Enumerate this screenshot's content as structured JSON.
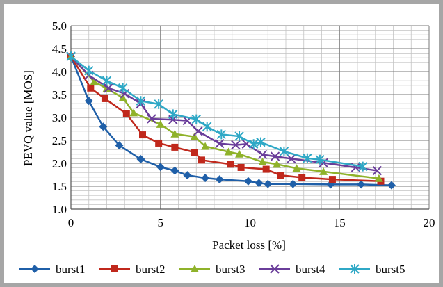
{
  "chart_data": {
    "type": "line",
    "xlabel": "Packet loss [%]",
    "ylabel": "PEVQ value [MOS]",
    "xlim": [
      0,
      20
    ],
    "ylim": [
      1.0,
      5.0
    ],
    "x_ticks": [
      "0",
      "5",
      "10",
      "15",
      "20"
    ],
    "y_ticks": [
      "1.0",
      "1.5",
      "2.0",
      "2.5",
      "3.0",
      "3.5",
      "4.0",
      "4.5",
      "5.0"
    ],
    "grid": true,
    "legend_position": "bottom",
    "series": [
      {
        "name": "burst1",
        "color": "#1f5fa8",
        "marker": "diamond",
        "points": [
          [
            0,
            4.33
          ],
          [
            1,
            3.36
          ],
          [
            1.8,
            2.8
          ],
          [
            2.7,
            2.39
          ],
          [
            3.9,
            2.09
          ],
          [
            5,
            1.92
          ],
          [
            5.8,
            1.84
          ],
          [
            6.5,
            1.74
          ],
          [
            7.5,
            1.68
          ],
          [
            8.3,
            1.65
          ],
          [
            9.9,
            1.61
          ],
          [
            10.5,
            1.57
          ],
          [
            11,
            1.55
          ],
          [
            12.4,
            1.55
          ],
          [
            14.5,
            1.54
          ],
          [
            16.2,
            1.54
          ],
          [
            17.9,
            1.52
          ]
        ]
      },
      {
        "name": "burst2",
        "color": "#c0281c",
        "marker": "square",
        "points": [
          [
            0,
            4.33
          ],
          [
            1.1,
            3.64
          ],
          [
            1.9,
            3.41
          ],
          [
            3.1,
            3.08
          ],
          [
            4,
            2.62
          ],
          [
            4.9,
            2.44
          ],
          [
            5.8,
            2.35
          ],
          [
            6.9,
            2.24
          ],
          [
            7.3,
            2.07
          ],
          [
            8.9,
            1.98
          ],
          [
            9.5,
            1.91
          ],
          [
            10.9,
            1.87
          ],
          [
            11.7,
            1.74
          ],
          [
            12.9,
            1.69
          ],
          [
            14.6,
            1.65
          ],
          [
            17.3,
            1.61
          ]
        ]
      },
      {
        "name": "burst3",
        "color": "#8fb22a",
        "marker": "triangle",
        "points": [
          [
            0,
            4.33
          ],
          [
            1.3,
            3.78
          ],
          [
            2,
            3.63
          ],
          [
            2.9,
            3.43
          ],
          [
            3.5,
            3.1
          ],
          [
            5,
            2.85
          ],
          [
            5.8,
            2.64
          ],
          [
            6.9,
            2.58
          ],
          [
            7.5,
            2.37
          ],
          [
            8.8,
            2.25
          ],
          [
            9.4,
            2.2
          ],
          [
            10.7,
            2.03
          ],
          [
            11.5,
            1.98
          ],
          [
            12.6,
            1.89
          ],
          [
            14.1,
            1.82
          ],
          [
            17.2,
            1.67
          ]
        ]
      },
      {
        "name": "burst4",
        "color": "#6a3d9a",
        "marker": "x",
        "points": [
          [
            0,
            4.33
          ],
          [
            1,
            3.92
          ],
          [
            2.1,
            3.64
          ],
          [
            3,
            3.52
          ],
          [
            3.9,
            3.3
          ],
          [
            4.5,
            2.97
          ],
          [
            5.7,
            2.95
          ],
          [
            6.5,
            2.93
          ],
          [
            7.1,
            2.7
          ],
          [
            8.3,
            2.43
          ],
          [
            9.2,
            2.4
          ],
          [
            9.8,
            2.42
          ],
          [
            10.7,
            2.19
          ],
          [
            11.4,
            2.15
          ],
          [
            12.3,
            2.1
          ],
          [
            14.1,
            2.01
          ],
          [
            15.9,
            1.91
          ],
          [
            17.1,
            1.84
          ]
        ]
      },
      {
        "name": "burst5",
        "color": "#2fa8c6",
        "marker": "asterisk",
        "points": [
          [
            0,
            4.33
          ],
          [
            1,
            4.02
          ],
          [
            2,
            3.8
          ],
          [
            2.9,
            3.64
          ],
          [
            3.9,
            3.36
          ],
          [
            4.9,
            3.29
          ],
          [
            5.7,
            3.07
          ],
          [
            7,
            2.96
          ],
          [
            7.6,
            2.8
          ],
          [
            8.4,
            2.63
          ],
          [
            9.4,
            2.59
          ],
          [
            10.2,
            2.42
          ],
          [
            10.6,
            2.46
          ],
          [
            11.9,
            2.26
          ],
          [
            13.2,
            2.11
          ],
          [
            13.9,
            2.08
          ],
          [
            16.3,
            1.93
          ]
        ]
      }
    ]
  }
}
